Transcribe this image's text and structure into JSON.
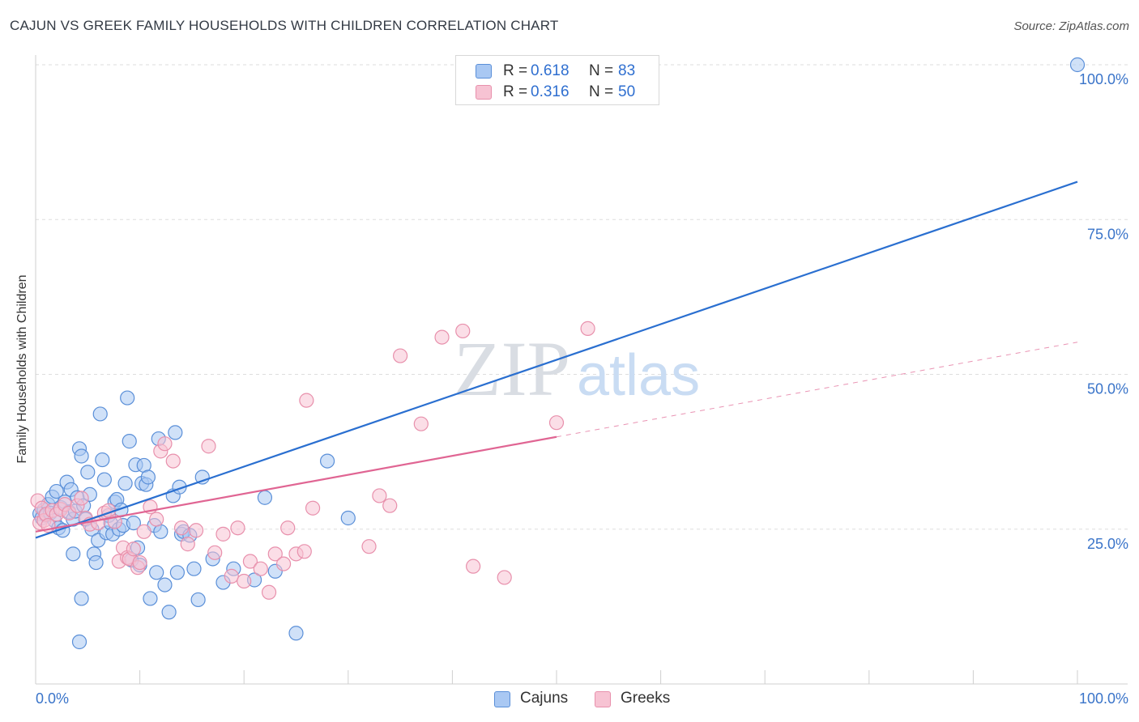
{
  "title": "CAJUN VS GREEK FAMILY HOUSEHOLDS WITH CHILDREN CORRELATION CHART",
  "source": "Source: ZipAtlas.com",
  "watermark": {
    "zip": "ZIP",
    "atlas": "atlas"
  },
  "colors": {
    "cajun_fill": "#a9c8f3",
    "cajun_stroke": "#5a8fd8",
    "cajun_line": "#2a6fd0",
    "greek_fill": "#f7c3d3",
    "greek_stroke": "#e890ac",
    "greek_line": "#e06593",
    "axis_text": "#3a74c9",
    "grid": "#dedede"
  },
  "legend_top": {
    "cajun": {
      "r_label": "R =",
      "r_value": "0.618",
      "n_label": "N =",
      "n_value": "83"
    },
    "greek": {
      "r_label": "R =",
      "r_value": "0.316",
      "n_label": "N =",
      "n_value": "50"
    }
  },
  "chart_data": {
    "type": "scatter",
    "title": "CAJUN VS GREEK FAMILY HOUSEHOLDS WITH CHILDREN CORRELATION CHART",
    "xlabel": "",
    "ylabel": "Family Households with Children",
    "xlim": [
      0,
      100
    ],
    "ylim": [
      0,
      100
    ],
    "x_tick_labels": {
      "left": "0.0%",
      "right": "100.0%"
    },
    "y_ticks": [
      25,
      50,
      75,
      100
    ],
    "y_tick_labels": [
      "25.0%",
      "50.0%",
      "75.0%",
      "100.0%"
    ],
    "legend": [
      "Cajuns",
      "Greeks"
    ],
    "series": [
      {
        "name": "Cajuns",
        "r": 0.618,
        "n": 83,
        "trend": {
          "x0": 0,
          "y0": 23.6,
          "x1": 100,
          "y1": 81.1,
          "dashed_from": null
        },
        "points": [
          [
            0.4,
            27.5
          ],
          [
            0.6,
            26.8
          ],
          [
            0.8,
            28.1
          ],
          [
            1.0,
            27.2
          ],
          [
            1.2,
            29.0
          ],
          [
            1.4,
            27.6
          ],
          [
            1.6,
            30.2
          ],
          [
            1.8,
            26.4
          ],
          [
            2.0,
            31.1
          ],
          [
            2.2,
            25.2
          ],
          [
            2.4,
            28.5
          ],
          [
            2.6,
            24.8
          ],
          [
            2.8,
            29.4
          ],
          [
            3.0,
            32.6
          ],
          [
            3.2,
            27.8
          ],
          [
            3.4,
            31.4
          ],
          [
            3.6,
            26.6
          ],
          [
            3.8,
            27.9
          ],
          [
            4.0,
            30.1
          ],
          [
            4.2,
            38.0
          ],
          [
            4.4,
            36.8
          ],
          [
            4.6,
            28.8
          ],
          [
            4.8,
            26.6
          ],
          [
            5.0,
            34.2
          ],
          [
            5.2,
            30.6
          ],
          [
            5.4,
            25.0
          ],
          [
            5.6,
            21.0
          ],
          [
            5.8,
            19.6
          ],
          [
            6.0,
            23.2
          ],
          [
            6.2,
            43.6
          ],
          [
            6.4,
            36.2
          ],
          [
            6.6,
            33.0
          ],
          [
            6.8,
            24.4
          ],
          [
            7.0,
            27.2
          ],
          [
            7.2,
            26.0
          ],
          [
            7.4,
            24.2
          ],
          [
            7.6,
            29.4
          ],
          [
            7.8,
            29.8
          ],
          [
            8.0,
            25.0
          ],
          [
            8.2,
            28.1
          ],
          [
            8.4,
            25.6
          ],
          [
            8.6,
            32.4
          ],
          [
            8.8,
            46.2
          ],
          [
            9.0,
            39.2
          ],
          [
            9.2,
            20.0
          ],
          [
            9.4,
            26.0
          ],
          [
            9.6,
            35.4
          ],
          [
            9.8,
            22.0
          ],
          [
            10.0,
            19.2
          ],
          [
            10.2,
            32.4
          ],
          [
            10.4,
            35.3
          ],
          [
            10.6,
            32.2
          ],
          [
            10.8,
            33.4
          ],
          [
            11.0,
            13.8
          ],
          [
            11.4,
            25.6
          ],
          [
            11.6,
            18.0
          ],
          [
            11.8,
            39.6
          ],
          [
            12.0,
            24.6
          ],
          [
            12.4,
            16.0
          ],
          [
            12.8,
            11.6
          ],
          [
            13.2,
            30.4
          ],
          [
            13.4,
            40.6
          ],
          [
            13.6,
            18.0
          ],
          [
            13.8,
            31.8
          ],
          [
            14.0,
            24.2
          ],
          [
            14.2,
            24.6
          ],
          [
            14.8,
            24.0
          ],
          [
            15.2,
            18.6
          ],
          [
            15.6,
            13.6
          ],
          [
            16.0,
            33.4
          ],
          [
            17.0,
            20.2
          ],
          [
            18.0,
            16.4
          ],
          [
            19.0,
            18.6
          ],
          [
            21.0,
            16.8
          ],
          [
            22.0,
            30.1
          ],
          [
            23.0,
            18.2
          ],
          [
            25.0,
            8.2
          ],
          [
            28.0,
            36.0
          ],
          [
            30.0,
            26.8
          ],
          [
            4.2,
            6.8
          ],
          [
            4.4,
            13.8
          ],
          [
            3.6,
            21.0
          ],
          [
            100.0,
            100.0
          ]
        ]
      },
      {
        "name": "Greeks",
        "r": 0.316,
        "n": 50,
        "trend": {
          "x0": 0,
          "y0": 24.6,
          "x1": 100,
          "y1": 55.2,
          "dashed_from": 50
        },
        "points": [
          [
            0.2,
            29.6
          ],
          [
            0.4,
            26.0
          ],
          [
            0.6,
            28.4
          ],
          [
            0.8,
            26.4
          ],
          [
            1.0,
            27.4
          ],
          [
            1.2,
            25.6
          ],
          [
            1.6,
            28.0
          ],
          [
            2.0,
            27.4
          ],
          [
            2.4,
            28.2
          ],
          [
            2.8,
            29.0
          ],
          [
            3.2,
            27.6
          ],
          [
            4.0,
            28.8
          ],
          [
            4.4,
            30.0
          ],
          [
            4.8,
            26.8
          ],
          [
            5.2,
            25.8
          ],
          [
            6.0,
            26.0
          ],
          [
            6.6,
            27.6
          ],
          [
            7.0,
            28.0
          ],
          [
            7.6,
            26.2
          ],
          [
            8.0,
            19.8
          ],
          [
            8.4,
            22.0
          ],
          [
            8.8,
            20.4
          ],
          [
            9.0,
            20.2
          ],
          [
            9.4,
            21.8
          ],
          [
            9.8,
            18.8
          ],
          [
            10.0,
            19.6
          ],
          [
            10.4,
            24.6
          ],
          [
            11.0,
            28.6
          ],
          [
            11.6,
            26.6
          ],
          [
            12.0,
            37.6
          ],
          [
            12.4,
            38.8
          ],
          [
            13.2,
            36.0
          ],
          [
            14.0,
            25.2
          ],
          [
            14.6,
            22.6
          ],
          [
            15.4,
            24.8
          ],
          [
            16.6,
            38.4
          ],
          [
            17.2,
            21.2
          ],
          [
            18.0,
            24.2
          ],
          [
            18.8,
            17.4
          ],
          [
            19.4,
            25.2
          ],
          [
            20.0,
            16.6
          ],
          [
            20.6,
            19.8
          ],
          [
            21.6,
            18.6
          ],
          [
            22.4,
            14.8
          ],
          [
            23.0,
            21.0
          ],
          [
            23.8,
            19.4
          ],
          [
            24.2,
            25.2
          ],
          [
            25.0,
            21.0
          ],
          [
            25.8,
            21.4
          ],
          [
            26.6,
            28.4
          ]
        ]
      }
    ],
    "extra_greek_points": [
      [
        26.0,
        45.8
      ],
      [
        32.0,
        22.2
      ],
      [
        33.0,
        30.4
      ],
      [
        34.0,
        28.8
      ],
      [
        35.0,
        53.0
      ],
      [
        37.0,
        42.0
      ],
      [
        39.0,
        56.0
      ],
      [
        41.0,
        57.0
      ],
      [
        42.0,
        19.0
      ],
      [
        45.0,
        17.2
      ],
      [
        50.0,
        42.2
      ],
      [
        53.0,
        57.4
      ]
    ]
  }
}
